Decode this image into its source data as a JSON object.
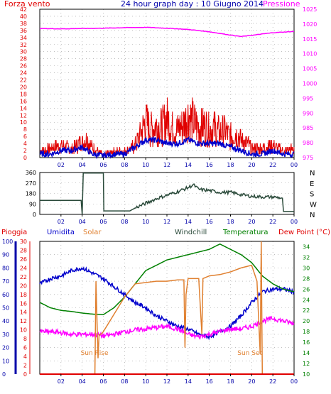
{
  "header": {
    "left_label": "Forza vento",
    "title": "24 hour graph day : 10 Giugno 2014",
    "right_label": "Pressione"
  },
  "colors": {
    "red": "#e00000",
    "blue": "#0000cc",
    "magenta": "#ff00ff",
    "dark_green": "#2a4a3a",
    "green": "#008000",
    "orange": "#e08030",
    "axis_blue": "#0000aa",
    "grid": "#999999"
  },
  "x_ticks": [
    "02",
    "04",
    "06",
    "08",
    "10",
    "12",
    "14",
    "16",
    "18",
    "20",
    "22",
    "00"
  ],
  "chart_data": [
    {
      "type": "line",
      "panel": "wind-pressure",
      "left_axis": {
        "label": "Forza vento",
        "ticks": [
          "0",
          "2",
          "4",
          "6",
          "8",
          "10",
          "12",
          "14",
          "16",
          "18",
          "20",
          "22",
          "24",
          "26",
          "28",
          "30",
          "32",
          "34",
          "36",
          "38",
          "40",
          "42"
        ],
        "range": [
          0,
          42
        ]
      },
      "right_axis": {
        "label": "Pressione",
        "ticks": [
          "975",
          "980",
          "985",
          "990",
          "995",
          "1000",
          "1005",
          "1010",
          "1015",
          "1020",
          "1025"
        ],
        "range": [
          975,
          1025
        ]
      },
      "series": [
        {
          "name": "",
          "color": "red",
          "axis": "left",
          "x": [
            0,
            1,
            2,
            3,
            4,
            4.5,
            5,
            5.5,
            6,
            7,
            8,
            9,
            9.5,
            10,
            10.5,
            11,
            11.5,
            12,
            12.5,
            13,
            13.5,
            14,
            14.5,
            15,
            15.5,
            16,
            16.5,
            17,
            17.5,
            18,
            18.5,
            19,
            19.5,
            20,
            21,
            22,
            23,
            24
          ],
          "y": [
            2,
            3,
            4,
            3,
            5,
            6,
            3,
            2,
            1,
            2,
            2,
            4,
            8,
            12,
            9,
            11,
            10,
            13,
            10,
            9,
            11,
            14,
            12,
            10,
            11,
            9,
            10,
            8,
            9,
            7,
            8,
            6,
            5,
            3,
            3,
            4,
            2,
            3
          ]
        },
        {
          "name": "",
          "color": "blue",
          "axis": "left",
          "x": [
            0,
            1,
            2,
            3,
            4,
            5,
            6,
            7,
            8,
            9,
            10,
            11,
            12,
            13,
            14,
            15,
            16,
            17,
            18,
            19,
            20,
            21,
            22,
            23,
            24
          ],
          "y": [
            1,
            1,
            2,
            2,
            3,
            1,
            0.5,
            1,
            1,
            3,
            5,
            5,
            4,
            4,
            5,
            4,
            4,
            4,
            3,
            2,
            1,
            1,
            2,
            1,
            1
          ]
        },
        {
          "name": "",
          "color": "magenta",
          "axis": "right",
          "x": [
            0,
            2,
            4,
            6,
            8,
            10,
            12,
            14,
            16,
            18,
            19,
            20,
            22,
            24
          ],
          "y": [
            1018.5,
            1018.4,
            1018.5,
            1018.6,
            1018.8,
            1018.9,
            1018.6,
            1018.2,
            1017.4,
            1016.3,
            1015.8,
            1016.2,
            1017.1,
            1017.5
          ]
        }
      ]
    },
    {
      "type": "line",
      "panel": "wind-direction",
      "left_axis": {
        "ticks": [
          "0",
          "90",
          "180",
          "270",
          "360"
        ],
        "range": [
          0,
          360
        ]
      },
      "right_axis": {
        "ticks": [
          "N",
          "W",
          "S",
          "E",
          "N"
        ]
      },
      "series": [
        {
          "name": "",
          "color": "dark_green",
          "x": [
            0,
            3.9,
            4.0,
            4.1,
            6.0,
            6.05,
            8.5,
            9,
            10,
            11,
            12,
            13,
            14,
            14.5,
            15,
            16,
            17,
            18,
            19,
            20,
            21,
            22,
            22.9,
            23,
            24
          ],
          "y": [
            120,
            120,
            0,
            355,
            355,
            30,
            30,
            55,
            95,
            135,
            165,
            195,
            230,
            255,
            215,
            205,
            190,
            190,
            170,
            155,
            150,
            150,
            140,
            25,
            25
          ]
        }
      ]
    },
    {
      "type": "line",
      "panel": "humidity-temperature",
      "legend": [
        "Pioggia",
        "Umidita",
        "Solar",
        "Windchill",
        "Temperatura",
        "Dew Point (°C)"
      ],
      "annotations": [
        "Sun Rise",
        "Sun Set"
      ],
      "left_axis_outer": {
        "label": "Umidita",
        "ticks": [
          "0",
          "10",
          "20",
          "30",
          "40",
          "50",
          "60",
          "70",
          "80",
          "90",
          "100"
        ],
        "range": [
          0,
          100
        ]
      },
      "left_axis_inner": {
        "ticks": [
          "0",
          "2",
          "4",
          "6",
          "8",
          "10",
          "12",
          "14",
          "16",
          "18",
          "20",
          "22",
          "24",
          "26",
          "28",
          "30"
        ],
        "range": [
          0,
          30
        ]
      },
      "right_axis": {
        "label": "Temperatura",
        "ticks": [
          "10",
          "12",
          "14",
          "16",
          "18",
          "20",
          "22",
          "24",
          "26",
          "28",
          "30",
          "32",
          "34"
        ],
        "range": [
          10,
          35
        ]
      },
      "series": [
        {
          "name": "Umidita",
          "color": "blue",
          "scale": "outer",
          "x": [
            0,
            1,
            2,
            3,
            4,
            5,
            6,
            7,
            8,
            9,
            10,
            11,
            12,
            13,
            14,
            15,
            16,
            17,
            18,
            19,
            20,
            21,
            22,
            23,
            24
          ],
          "y": [
            68,
            72,
            74,
            78,
            80,
            76,
            72,
            66,
            60,
            54,
            50,
            44,
            40,
            36,
            34,
            30,
            28,
            32,
            36,
            44,
            54,
            62,
            64,
            64,
            62
          ]
        },
        {
          "name": "Temperatura",
          "color": "green",
          "scale": "right",
          "x": [
            0,
            1,
            2,
            3,
            4,
            5,
            6,
            7,
            8,
            9,
            10,
            11,
            12,
            13,
            14,
            15,
            16,
            17,
            18,
            19,
            20,
            21,
            22,
            23,
            24
          ],
          "y": [
            23.5,
            22.5,
            22,
            21.8,
            21.5,
            21.3,
            21.2,
            22.5,
            24.5,
            27,
            29.5,
            30.5,
            31.5,
            32,
            32.5,
            33,
            33.5,
            34.5,
            33.5,
            32.5,
            31,
            28.5,
            27,
            26,
            25.5
          ]
        },
        {
          "name": "Dew Point (°C)",
          "color": "magenta",
          "scale": "right",
          "x": [
            0,
            1,
            2,
            3,
            4,
            5,
            6,
            7,
            8,
            9,
            10,
            11,
            12,
            13,
            14,
            15,
            16,
            17,
            18,
            19,
            20,
            21,
            22,
            23,
            24
          ],
          "y": [
            18,
            18,
            17.8,
            17.5,
            17.5,
            17.5,
            17.2,
            17.5,
            18,
            18.3,
            18.5,
            18.8,
            19,
            18.5,
            17.5,
            17,
            17.5,
            18,
            18.5,
            18.5,
            19,
            20,
            20.5,
            20,
            19.5
          ]
        },
        {
          "name": "Solar",
          "color": "orange",
          "scale": "outer",
          "x": [
            0,
            5.2,
            5.3,
            5.5,
            5.6,
            5.8,
            6,
            7,
            8,
            9,
            10,
            11,
            12,
            13,
            13.6,
            13.7,
            13.8,
            14,
            15,
            15.3,
            15.4,
            16,
            17,
            18,
            19,
            20,
            20.5,
            20.8,
            20.9,
            21,
            24
          ],
          "y": [
            0,
            0,
            70,
            12,
            30,
            30,
            32,
            45,
            58,
            68,
            69,
            70,
            70,
            71,
            71,
            20,
            60,
            72,
            72,
            30,
            72,
            74,
            75,
            77,
            80,
            82,
            70,
            15,
            100,
            0,
            0
          ]
        },
        {
          "name": "Pioggia",
          "color": "red",
          "scale": "inner",
          "x": [
            0,
            24
          ],
          "y": [
            0,
            0
          ]
        }
      ]
    }
  ]
}
